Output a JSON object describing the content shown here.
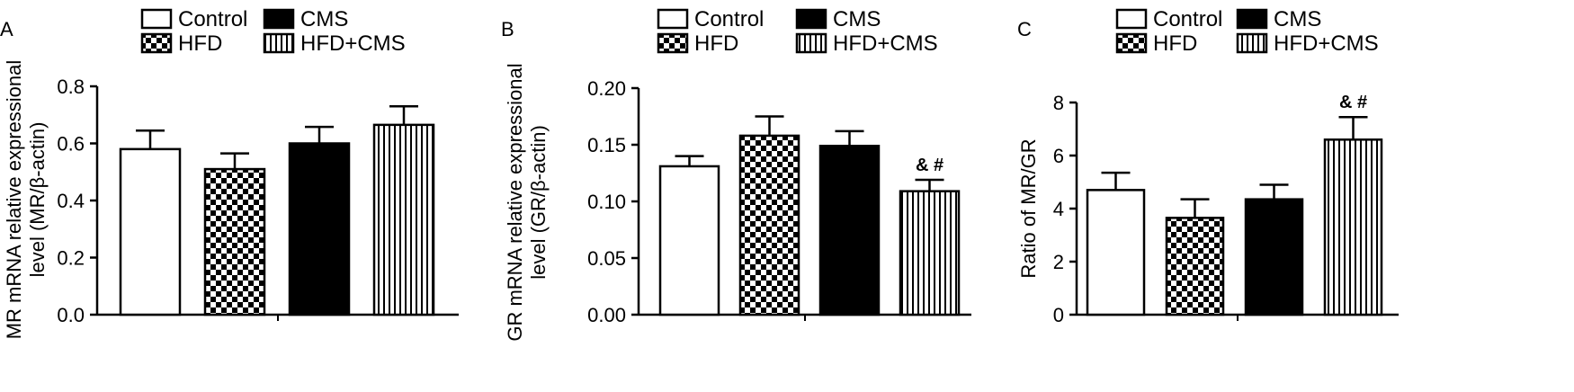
{
  "legend": {
    "items": [
      {
        "label": "Control",
        "pattern": "white"
      },
      {
        "label": "CMS",
        "pattern": "black"
      },
      {
        "label": "HFD",
        "pattern": "checker"
      },
      {
        "label": "HFD+CMS",
        "pattern": "vstripe"
      }
    ]
  },
  "chart_data": [
    {
      "type": "bar",
      "panel_label": "A",
      "categories": [
        "Control",
        "HFD",
        "CMS",
        "HFD+CMS"
      ],
      "values": [
        0.58,
        0.51,
        0.6,
        0.665
      ],
      "errors": [
        0.065,
        0.055,
        0.058,
        0.065
      ],
      "annotations": [
        "",
        "",
        "",
        ""
      ],
      "ylabel_lines": [
        "MR mRNA relative expressional",
        "level  (MR/β-actin)"
      ],
      "ylim": [
        0,
        0.8
      ],
      "yticks": [
        "0.0",
        "0.2",
        "0.4",
        "0.6",
        "0.8"
      ],
      "ytick_values": [
        0,
        0.2,
        0.4,
        0.6,
        0.8
      ]
    },
    {
      "type": "bar",
      "panel_label": "B",
      "categories": [
        "Control",
        "HFD",
        "CMS",
        "HFD+CMS"
      ],
      "values": [
        0.131,
        0.158,
        0.149,
        0.109
      ],
      "errors": [
        0.009,
        0.017,
        0.013,
        0.01
      ],
      "annotations": [
        "",
        "",
        "",
        "& #"
      ],
      "ylabel_lines": [
        "GR mRNA relative expressional",
        "level (GR/β-actin)"
      ],
      "ylim": [
        0,
        0.2
      ],
      "yticks": [
        "0.00",
        "0.05",
        "0.10",
        "0.15",
        "0.20"
      ],
      "ytick_values": [
        0,
        0.05,
        0.1,
        0.15,
        0.2
      ]
    },
    {
      "type": "bar",
      "panel_label": "C",
      "categories": [
        "Control",
        "HFD",
        "CMS",
        "HFD+CMS"
      ],
      "values": [
        4.7,
        3.65,
        4.35,
        6.6
      ],
      "errors": [
        0.65,
        0.7,
        0.55,
        0.85
      ],
      "annotations": [
        "",
        "",
        "",
        "& #"
      ],
      "ylabel_lines": [
        "Ratio of MR/GR"
      ],
      "ylim": [
        0,
        8
      ],
      "yticks": [
        "0",
        "2",
        "4",
        "6",
        "8"
      ],
      "ytick_values": [
        0,
        2,
        4,
        6,
        8
      ]
    }
  ]
}
